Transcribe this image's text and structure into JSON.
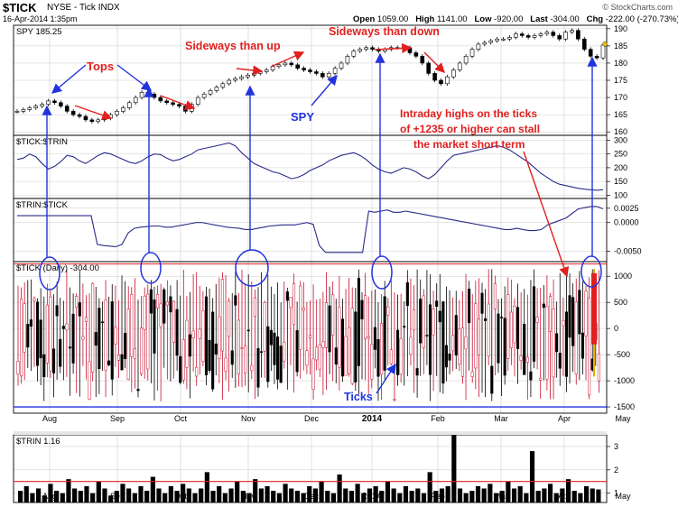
{
  "header": {
    "symbol": "$TICK",
    "exchange_name": "NYSE - Tick",
    "index_tag": "INDX",
    "date": "16-Apr-2014 1:35pm",
    "brand": "© StockCharts.com",
    "open_label": "Open",
    "open_value": "1059.00",
    "high_label": "High",
    "high_value": "1141.00",
    "low_label": "Low",
    "low_value": "-920.00",
    "last_label": "Last",
    "last_value": "-304.00",
    "chg_label": "Chg",
    "chg_value": "-222.00 (-270.73%)",
    "chg_arrow": "▼"
  },
  "panels": {
    "spy_label": "SPY 185.25",
    "ticktrin_label": "$TICK:$TRIN",
    "trintick_label": "$TRIN:$TICK",
    "tick_label": "$TICK (Daily) -304.00",
    "trin_label": "$TRIN 1.16"
  },
  "annotations": {
    "tops": "Tops",
    "sideways_up": "Sideways than up",
    "sideways_down": "Sideways than down",
    "spy": "SPY",
    "intraday_line1": "Intraday highs on the ticks",
    "intraday_line2": "of +1235 or higher can stall",
    "intraday_line3": "the market short term",
    "ticks": "Ticks"
  },
  "colors": {
    "red": "#e02020",
    "blue": "#2233dd",
    "line": "#2a2a8a",
    "up_bar": "#c8102e",
    "grid": "#cccccc",
    "background": "#ffffff"
  },
  "chart_data": [
    {
      "type": "line",
      "name": "SPY",
      "months": [
        "Aug",
        "Sep",
        "Oct",
        "Nov",
        "Dec",
        "2014",
        "Feb",
        "Mar",
        "Apr",
        "May"
      ],
      "y_ticks": [
        160,
        165,
        170,
        175,
        180,
        185,
        190
      ],
      "ylim": [
        159,
        191
      ],
      "last": 185.25,
      "values": [
        166,
        166.5,
        167,
        167.5,
        168,
        169,
        168.5,
        167.5,
        166,
        165,
        164.5,
        163.5,
        163,
        163.5,
        164,
        165,
        166,
        167,
        168.5,
        170,
        171.5,
        171,
        170,
        169,
        168.5,
        168,
        167.5,
        166,
        168,
        170,
        171,
        172,
        173,
        174,
        175,
        175.5,
        176,
        176.5,
        177,
        177.5,
        178,
        179,
        179.5,
        180,
        179.5,
        178.5,
        178,
        177.5,
        177,
        176,
        177,
        178.5,
        180,
        182,
        183.5,
        184,
        184.5,
        184,
        183.5,
        184,
        184.5,
        184.5,
        184.5,
        183,
        182,
        180,
        177,
        175,
        174,
        176,
        178,
        180,
        182,
        184,
        185.5,
        186,
        186.5,
        187,
        187,
        187.5,
        188.5,
        188,
        187.5,
        188,
        188.5,
        189,
        188,
        187,
        189,
        189.5,
        187,
        184,
        182,
        181.5,
        185.25
      ]
    },
    {
      "type": "line",
      "name": "$TICK:$TRIN",
      "y_ticks": [
        100,
        150,
        200,
        250,
        300
      ],
      "ylim": [
        88,
        318
      ],
      "values": [
        230,
        235,
        250,
        240,
        215,
        195,
        205,
        222,
        245,
        240,
        225,
        215,
        230,
        245,
        255,
        250,
        240,
        230,
        220,
        215,
        225,
        240,
        250,
        248,
        235,
        225,
        230,
        240,
        250,
        265,
        270,
        275,
        280,
        285,
        290,
        280,
        255,
        235,
        215,
        205,
        195,
        185,
        180,
        170,
        160,
        165,
        175,
        190,
        200,
        210,
        225,
        235,
        245,
        250,
        255,
        245,
        230,
        210,
        195,
        185,
        180,
        190,
        200,
        195,
        185,
        170,
        160,
        175,
        200,
        225,
        245,
        250,
        255,
        260,
        265,
        270,
        275,
        280,
        275,
        265,
        250,
        235,
        220,
        200,
        180,
        165,
        150,
        140,
        135,
        130,
        125,
        122,
        120,
        118,
        120
      ]
    },
    {
      "type": "line",
      "name": "$TRIN:$TICK",
      "y_ticks": [
        -0.005,
        0.0,
        0.0025
      ],
      "ylim": [
        -0.0068,
        0.0042
      ],
      "values": [
        0.0012,
        0.0012,
        0.0012,
        0.0012,
        0.0012,
        0.0012,
        0.0012,
        0.0012,
        0.0012,
        0.0012,
        0.0012,
        0.0012,
        0.0012,
        -0.0038,
        -0.004,
        -0.0041,
        -0.0042,
        -0.0038,
        -0.0018,
        -0.001,
        -0.0008,
        -0.0007,
        -0.0006,
        -0.0006,
        -0.0008,
        -0.0008,
        -0.0006,
        -0.0004,
        -0.0002,
        0.0,
        0.0,
        -0.0002,
        -0.0004,
        -0.0006,
        -0.0008,
        -0.0009,
        -0.001,
        -0.0012,
        -0.0012,
        -0.001,
        -0.0008,
        -0.0006,
        -0.0005,
        -0.0004,
        -0.0004,
        -0.0004,
        -0.0002,
        0.0,
        -0.0003,
        -0.004,
        -0.0052,
        -0.0052,
        -0.0052,
        -0.0052,
        -0.0052,
        -0.0052,
        -0.0052,
        0.002,
        0.0018,
        0.002,
        0.0022,
        0.0018,
        0.0018,
        0.002,
        0.0018,
        0.0016,
        0.0014,
        0.0012,
        0.001,
        0.0008,
        0.0006,
        0.0004,
        0.0002,
        0.0,
        -0.0002,
        -0.0004,
        -0.0006,
        -0.0008,
        -0.001,
        -0.0012,
        -0.0012,
        -0.001,
        -0.0012,
        -0.0014,
        -0.0014,
        -0.0012,
        -0.0004,
        0.0,
        0.0004,
        0.0008,
        0.0016,
        0.0024,
        0.0026,
        0.0028,
        0.0028,
        0.0024
      ]
    },
    {
      "type": "bar",
      "name": "$TICK (Daily)",
      "y_ticks": [
        -1500,
        -1000,
        -500,
        0,
        500,
        1000
      ],
      "ylim": [
        -1620,
        1280
      ],
      "reference_line": 1235,
      "bottom_line": -1500,
      "last": -304.0,
      "open": 1059.0,
      "high": 1141.0,
      "low": -920.0
    },
    {
      "type": "bar",
      "name": "$TRIN",
      "y_ticks": [
        1,
        2,
        3
      ],
      "ylim": [
        0.6,
        3.5
      ],
      "reference_line": 1.5,
      "last": 1.16,
      "values": [
        1.1,
        1.3,
        1.0,
        1.2,
        0.9,
        1.4,
        1.1,
        1.0,
        1.6,
        1.2,
        1.1,
        1.3,
        1.0,
        1.5,
        1.2,
        0.9,
        1.1,
        1.4,
        1.2,
        1.0,
        1.3,
        1.1,
        1.7,
        1.2,
        1.0,
        1.3,
        1.1,
        1.4,
        1.2,
        1.0,
        1.2,
        1.9,
        1.1,
        1.3,
        1.0,
        1.2,
        1.5,
        1.1,
        1.0,
        1.6,
        1.2,
        1.3,
        1.1,
        1.0,
        1.4,
        1.2,
        1.1,
        1.0,
        1.3,
        1.2,
        1.5,
        1.1,
        1.0,
        1.8,
        1.2,
        1.1,
        1.4,
        1.0,
        1.2,
        1.3,
        1.1,
        1.5,
        1.2,
        1.0,
        1.3,
        1.1,
        1.2,
        1.0,
        1.9,
        1.1,
        1.2,
        1.3,
        3.5,
        1.2,
        1.0,
        1.1,
        1.3,
        1.2,
        1.4,
        1.0,
        1.1,
        1.5,
        1.2,
        1.3,
        1.0,
        2.8,
        1.1,
        1.2,
        1.4,
        1.0,
        1.2,
        1.6,
        1.1,
        1.0,
        1.3,
        1.2,
        1.16
      ]
    }
  ]
}
